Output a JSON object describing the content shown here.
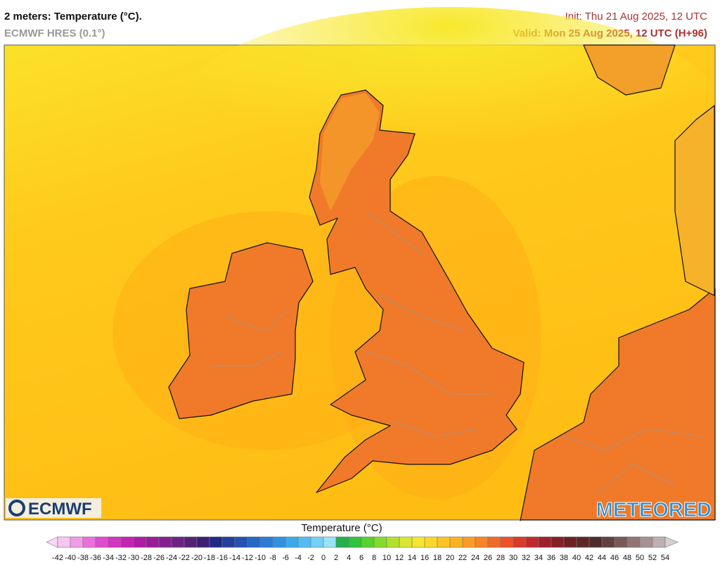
{
  "header": {
    "title": "2 meters: Temperature (°C).",
    "model": "ECMWF HRES (0.1°)",
    "init": "Init: Thu 21 Aug 2025, 12 UTC",
    "valid": "Valid: Mon 25 Aug 2025, 12 UTC (H+96)"
  },
  "logos": {
    "left": "ECMWF",
    "right": "METEORED"
  },
  "legend": {
    "title": "Temperature (°C)",
    "labels": [
      -42,
      -40,
      -38,
      -36,
      -34,
      -32,
      -30,
      -28,
      -26,
      -24,
      -22,
      -20,
      -18,
      -16,
      -14,
      -12,
      -10,
      -8,
      -6,
      -4,
      -2,
      0,
      2,
      4,
      6,
      8,
      10,
      12,
      14,
      16,
      18,
      20,
      22,
      24,
      26,
      28,
      30,
      32,
      34,
      36,
      38,
      40,
      42,
      44,
      46,
      48,
      50,
      52,
      54
    ]
  }
}
